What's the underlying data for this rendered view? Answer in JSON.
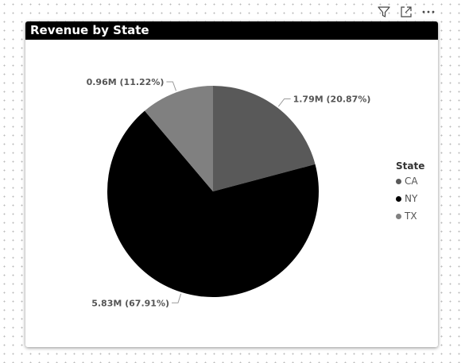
{
  "visual": {
    "title": "Revenue by State"
  },
  "toolbar": {
    "icons": [
      "filter-icon",
      "focus-mode-icon",
      "more-options-icon"
    ]
  },
  "legend": {
    "title": "State",
    "items": [
      {
        "label": "CA",
        "color": "#595959"
      },
      {
        "label": "NY",
        "color": "#000000"
      },
      {
        "label": "TX",
        "color": "#808080"
      }
    ]
  },
  "chart_data": {
    "type": "pie",
    "title": "Revenue by State",
    "legend_title": "State",
    "legend_position": "right",
    "slices": [
      {
        "category": "CA",
        "value": 1.79,
        "percent": 20.87,
        "label": "1.79M (20.87%)",
        "color": "#595959"
      },
      {
        "category": "NY",
        "value": 5.83,
        "percent": 67.91,
        "label": "5.83M (67.91%)",
        "color": "#000000"
      },
      {
        "category": "TX",
        "value": 0.96,
        "percent": 11.22,
        "label": "0.96M (11.22%)",
        "color": "#808080"
      }
    ]
  }
}
